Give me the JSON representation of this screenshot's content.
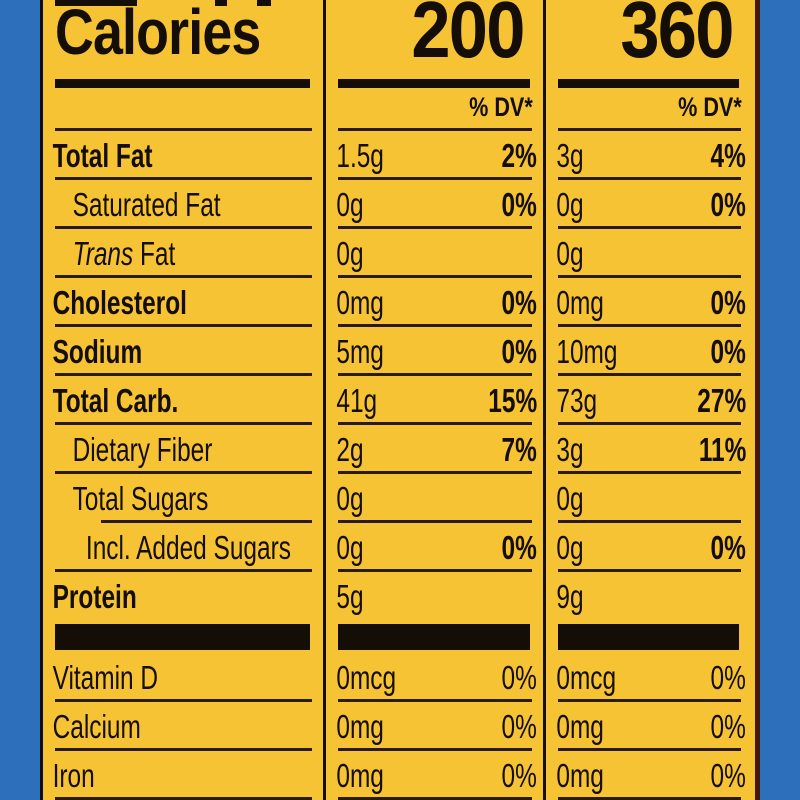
{
  "page": {
    "background_color": "#2d6fba"
  },
  "label": {
    "bg_color": "#f6c334",
    "ink_color": "#140e07",
    "rule_color": "#2a1a08",
    "right_edge_color": "#44190f",
    "header": {
      "title": "Calories",
      "col1_value": "200",
      "col2_value": "360",
      "dv_label": "% DV*"
    },
    "rows": [
      {
        "label": "Total Fat",
        "bold": true,
        "indent": 0,
        "c1": "1.5g",
        "c1dv": "2%",
        "c2": "3g",
        "c2dv": "4%"
      },
      {
        "label": "Saturated Fat",
        "bold": false,
        "indent": 1,
        "c1": "0g",
        "c1dv": "0%",
        "c2": "0g",
        "c2dv": "0%"
      },
      {
        "label_italic": "Trans",
        "label": " Fat",
        "bold": false,
        "indent": 1,
        "c1": "0g",
        "c1dv": "",
        "c2": "0g",
        "c2dv": ""
      },
      {
        "label": "Cholesterol",
        "bold": true,
        "indent": 0,
        "c1": "0mg",
        "c1dv": "0%",
        "c2": "0mg",
        "c2dv": "0%"
      },
      {
        "label": "Sodium",
        "bold": true,
        "indent": 0,
        "c1": "5mg",
        "c1dv": "0%",
        "c2": "10mg",
        "c2dv": "0%"
      },
      {
        "label": "Total Carb.",
        "bold": true,
        "indent": 0,
        "c1": "41g",
        "c1dv": "15%",
        "c2": "73g",
        "c2dv": "27%"
      },
      {
        "label": "Dietary Fiber",
        "bold": false,
        "indent": 1,
        "c1": "2g",
        "c1dv": "7%",
        "c2": "3g",
        "c2dv": "11%"
      },
      {
        "label": "Total Sugars",
        "bold": false,
        "indent": 1,
        "c1": "0g",
        "c1dv": "",
        "c2": "0g",
        "c2dv": "",
        "rule_indented": true
      },
      {
        "label": "Incl. Added Sugars",
        "bold": false,
        "indent": 2,
        "c1": "0g",
        "c1dv": "0%",
        "c2": "0g",
        "c2dv": "0%"
      },
      {
        "label": "Protein",
        "bold": true,
        "indent": 0,
        "c1": "5g",
        "c1dv": "",
        "c2": "9g",
        "c2dv": "",
        "no_rule": true
      }
    ],
    "micro_rows": [
      {
        "label": "Vitamin D",
        "c1": "0mcg",
        "c1dv": "0%",
        "c2": "0mcg",
        "c2dv": "0%"
      },
      {
        "label": "Calcium",
        "c1": "0mg",
        "c1dv": "0%",
        "c2": "0mg",
        "c2dv": "0%"
      },
      {
        "label": "Iron",
        "c1": "0mg",
        "c1dv": "0%",
        "c2": "0mg",
        "c2dv": "0%"
      }
    ]
  }
}
